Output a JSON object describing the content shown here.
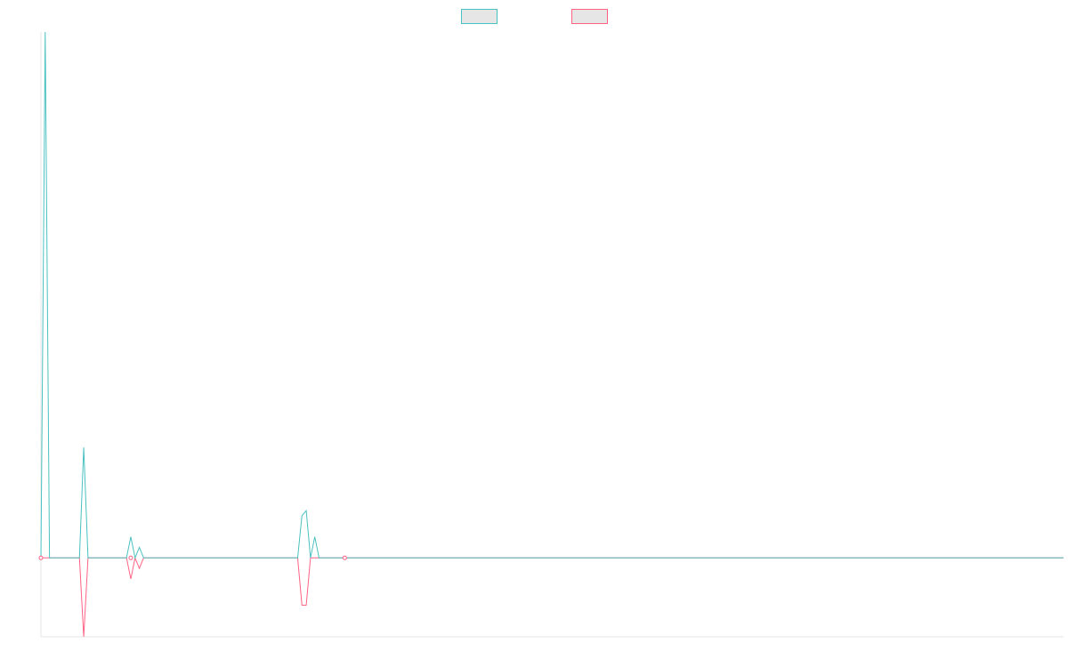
{
  "chart_data": {
    "type": "line",
    "x_count": 240,
    "xlim": [
      0,
      239
    ],
    "ylim": [
      -15,
      100
    ],
    "grid": false,
    "legend": {
      "placement": "top-center"
    },
    "series": [
      {
        "color": "#4bc0c0",
        "swatch_fill": "#e6e6e6",
        "points": [
          [
            0,
            0
          ],
          [
            1,
            100
          ],
          [
            2,
            0
          ],
          [
            9,
            0
          ],
          [
            10,
            21
          ],
          [
            11,
            0
          ],
          [
            20,
            0
          ],
          [
            21,
            4
          ],
          [
            22,
            0
          ],
          [
            23,
            2
          ],
          [
            24,
            0
          ],
          [
            60,
            0
          ],
          [
            61,
            8
          ],
          [
            62,
            9
          ],
          [
            63,
            0
          ],
          [
            64,
            4
          ],
          [
            65,
            0
          ],
          [
            239,
            0
          ]
        ]
      },
      {
        "color": "#ff6384",
        "swatch_fill": "#e6e6e6",
        "points": [
          [
            0,
            0
          ],
          [
            9,
            0
          ],
          [
            10,
            -15
          ],
          [
            11,
            0
          ],
          [
            20,
            0
          ],
          [
            21,
            -4
          ],
          [
            22,
            0
          ],
          [
            23,
            -2
          ],
          [
            24,
            0
          ],
          [
            60,
            0
          ],
          [
            61,
            -9
          ],
          [
            62,
            -9
          ],
          [
            63,
            0
          ],
          [
            64,
            0
          ],
          [
            239,
            0
          ]
        ]
      }
    ],
    "visible_markers": [
      {
        "series": 1,
        "x": 0,
        "y": 0
      },
      {
        "series": 1,
        "x": 21,
        "y": 0
      },
      {
        "series": 1,
        "x": 71,
        "y": 0
      }
    ]
  }
}
